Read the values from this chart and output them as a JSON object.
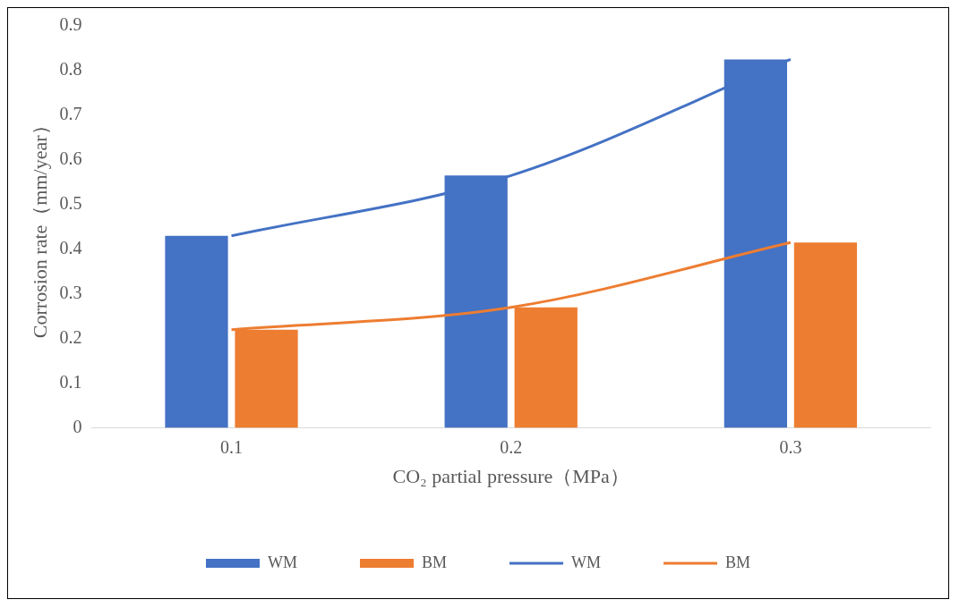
{
  "chart_data": {
    "type": "bar",
    "xlabel": "CO₂ partial pressure（MPa）",
    "ylabel": "Corrosion rate（mm/year）",
    "categories": [
      "0.1",
      "0.2",
      "0.3"
    ],
    "series": [
      {
        "name": "WM",
        "color": "#4472c4",
        "values": [
          0.43,
          0.565,
          0.825
        ]
      },
      {
        "name": "BM",
        "color": "#ed7d31",
        "values": [
          0.22,
          0.27,
          0.415
        ]
      },
      {
        "name": "WM",
        "type": "line",
        "color": "#4472c4",
        "values": [
          0.43,
          0.565,
          0.825
        ]
      },
      {
        "name": "BM",
        "type": "line",
        "color": "#ed7d31",
        "values": [
          0.22,
          0.27,
          0.415
        ]
      }
    ],
    "ylim": [
      0,
      0.9
    ],
    "yticks": [
      0,
      0.1,
      0.2,
      0.3,
      0.4,
      0.5,
      0.6,
      0.7,
      0.8,
      0.9
    ],
    "grid": false,
    "legend": "bottom",
    "line_style": "solid",
    "marker": "none"
  }
}
